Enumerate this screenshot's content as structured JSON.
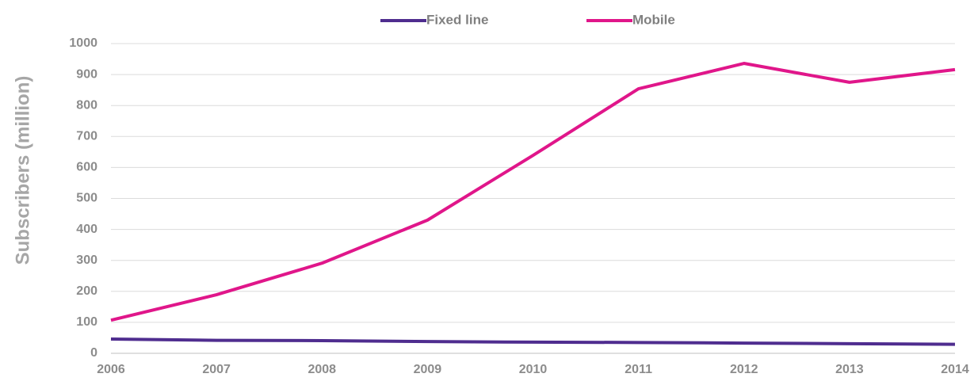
{
  "chart_data": {
    "type": "line",
    "y_label": "Subscribers (million)",
    "categories": [
      "2006",
      "2007",
      "2008",
      "2009",
      "2010",
      "2011",
      "2012",
      "2013",
      "2014"
    ],
    "series": [
      {
        "name": "Fixed line",
        "color": "#4f2d8f",
        "values": [
          46,
          42,
          41,
          38,
          36,
          35,
          33,
          31,
          29
        ]
      },
      {
        "name": "Mobile",
        "color": "#e0168a",
        "values": [
          107,
          189,
          291,
          430,
          639,
          854,
          936,
          875,
          916
        ]
      }
    ],
    "ylim": [
      0,
      1000
    ],
    "yticks": [
      0,
      100,
      200,
      300,
      400,
      500,
      600,
      700,
      800,
      900,
      1000
    ],
    "grid": true,
    "legend": "top"
  }
}
